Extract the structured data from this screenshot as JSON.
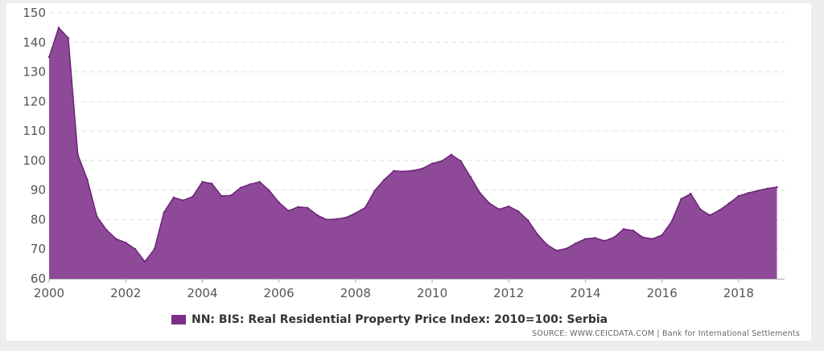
{
  "colors": {
    "area_fill": "#8e4a98",
    "area_stroke": "#6a2475",
    "legend_swatch": "#7b2f87",
    "grid": "#e2e2e2"
  },
  "legend": {
    "label": "NN: BIS: Real Residential Property Price Index: 2010=100: Serbia"
  },
  "source": {
    "text": "SOURCE: WWW.CEICDATA.COM | Bank for International Settlements"
  },
  "chart_data": {
    "type": "area",
    "title": "",
    "xlabel": "",
    "ylabel": "",
    "xlim": [
      2000,
      2019.2
    ],
    "ylim": [
      60,
      150
    ],
    "grid": true,
    "legend_position": "bottom",
    "y_ticks": [
      60,
      70,
      80,
      90,
      100,
      110,
      120,
      130,
      140,
      150
    ],
    "x_ticks": [
      2000,
      2002,
      2004,
      2006,
      2008,
      2010,
      2012,
      2014,
      2016,
      2018
    ],
    "series": [
      {
        "name": "NN: BIS: Real Residential Property Price Index: 2010=100: Serbia",
        "x": [
          2000.0,
          2000.25,
          2000.5,
          2000.75,
          2001.0,
          2001.25,
          2001.5,
          2001.75,
          2002.0,
          2002.25,
          2002.5,
          2002.75,
          2003.0,
          2003.25,
          2003.5,
          2003.75,
          2004.0,
          2004.25,
          2004.5,
          2004.75,
          2005.0,
          2005.25,
          2005.5,
          2005.75,
          2006.0,
          2006.25,
          2006.5,
          2006.75,
          2007.0,
          2007.25,
          2007.5,
          2007.75,
          2008.0,
          2008.25,
          2008.5,
          2008.75,
          2009.0,
          2009.25,
          2009.5,
          2009.75,
          2010.0,
          2010.25,
          2010.5,
          2010.75,
          2011.0,
          2011.25,
          2011.5,
          2011.75,
          2012.0,
          2012.25,
          2012.5,
          2012.75,
          2013.0,
          2013.25,
          2013.5,
          2013.75,
          2014.0,
          2014.25,
          2014.5,
          2014.75,
          2015.0,
          2015.25,
          2015.5,
          2015.75,
          2016.0,
          2016.25,
          2016.5,
          2016.75,
          2017.0,
          2017.25,
          2017.5,
          2017.75,
          2018.0,
          2018.25,
          2018.5,
          2018.75,
          2019.0
        ],
        "values": [
          135.0,
          145.0,
          141.5,
          102.0,
          93.5,
          81.0,
          76.5,
          73.5,
          72.2,
          70.0,
          65.8,
          70.0,
          82.5,
          87.5,
          86.5,
          87.8,
          92.8,
          92.2,
          88.0,
          88.2,
          90.8,
          92.0,
          92.8,
          89.8,
          85.8,
          83.0,
          84.3,
          84.0,
          81.5,
          80.0,
          80.2,
          80.7,
          82.2,
          84.0,
          89.8,
          93.5,
          96.5,
          96.3,
          96.6,
          97.3,
          99.0,
          99.8,
          102.0,
          99.8,
          94.5,
          89.0,
          85.5,
          83.5,
          84.5,
          82.8,
          79.8,
          75.0,
          71.5,
          69.5,
          70.2,
          72.0,
          73.5,
          73.8,
          72.8,
          74.0,
          76.8,
          76.3,
          74.0,
          73.5,
          74.8,
          79.3,
          87.0,
          88.8,
          83.5,
          81.5,
          83.2,
          85.5,
          88.0,
          89.0,
          89.8,
          90.5,
          91.0
        ]
      }
    ]
  }
}
